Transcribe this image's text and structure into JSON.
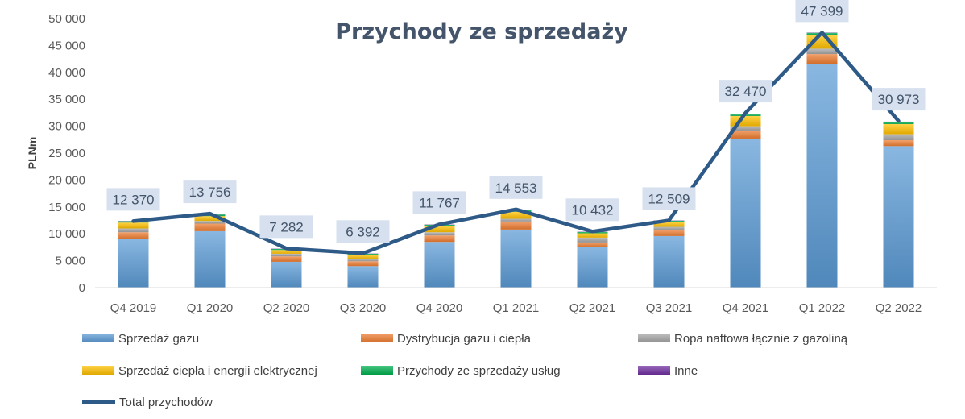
{
  "chart_data": {
    "type": "bar",
    "stacked": true,
    "title": "Przychody ze sprzedaży",
    "ylabel": "PLNm",
    "xlabel": "",
    "ylim": [
      0,
      50000
    ],
    "yticks": [
      0,
      5000,
      10000,
      15000,
      20000,
      25000,
      30000,
      35000,
      40000,
      45000,
      50000
    ],
    "ytick_labels": [
      "0",
      "5 000",
      "10 000",
      "15 000",
      "20 000",
      "25 000",
      "30 000",
      "35 000",
      "40 000",
      "45 000",
      "50 000"
    ],
    "grid": false,
    "legend_position": "bottom",
    "categories": [
      "Q4 2019",
      "Q1 2020",
      "Q2 2020",
      "Q3 2020",
      "Q4 2020",
      "Q1 2021",
      "Q2 2021",
      "Q3 2021",
      "Q4 2021",
      "Q1 2022",
      "Q2 2022"
    ],
    "series": [
      {
        "name": "Sprzedaż gazu",
        "color": "#5b9bd5",
        "values": [
          9000,
          10500,
          4800,
          4000,
          8500,
          10800,
          7500,
          9600,
          27700,
          41600,
          26300
        ]
      },
      {
        "name": "Dystrybucja gazu i ciepła",
        "color": "#ed7d31",
        "values": [
          1300,
          1400,
          1000,
          900,
          1200,
          1500,
          900,
          1100,
          1500,
          1800,
          1100
        ]
      },
      {
        "name": "Ropa naftowa łącznie z gazoliną",
        "color": "#a5a5a5",
        "values": [
          700,
          500,
          500,
          400,
          600,
          500,
          900,
          600,
          800,
          1000,
          1100
        ]
      },
      {
        "name": "Sprzedaż ciepła i energii elektrycznej",
        "color": "#ffc000",
        "values": [
          1100,
          900,
          700,
          800,
          1200,
          1300,
          800,
          900,
          1900,
          2500,
          1900
        ]
      },
      {
        "name": "Przychody ze sprzedaży usług",
        "color": "#00b050",
        "values": [
          250,
          300,
          200,
          200,
          200,
          300,
          250,
          250,
          300,
          450,
          400
        ]
      },
      {
        "name": "Inne",
        "color": "#7030a0",
        "values": [
          50,
          50,
          50,
          50,
          50,
          50,
          50,
          50,
          50,
          50,
          50
        ]
      }
    ],
    "line": {
      "name": "Total przychodów",
      "color": "#2e5a88",
      "values": [
        12370,
        13756,
        7282,
        6392,
        11767,
        14553,
        10432,
        12509,
        32470,
        47399,
        30973
      ],
      "labels": [
        "12 370",
        "13 756",
        "7 282",
        "6 392",
        "11 767",
        "14 553",
        "10 432",
        "12 509",
        "32 470",
        "47 399",
        "30 973"
      ]
    }
  }
}
